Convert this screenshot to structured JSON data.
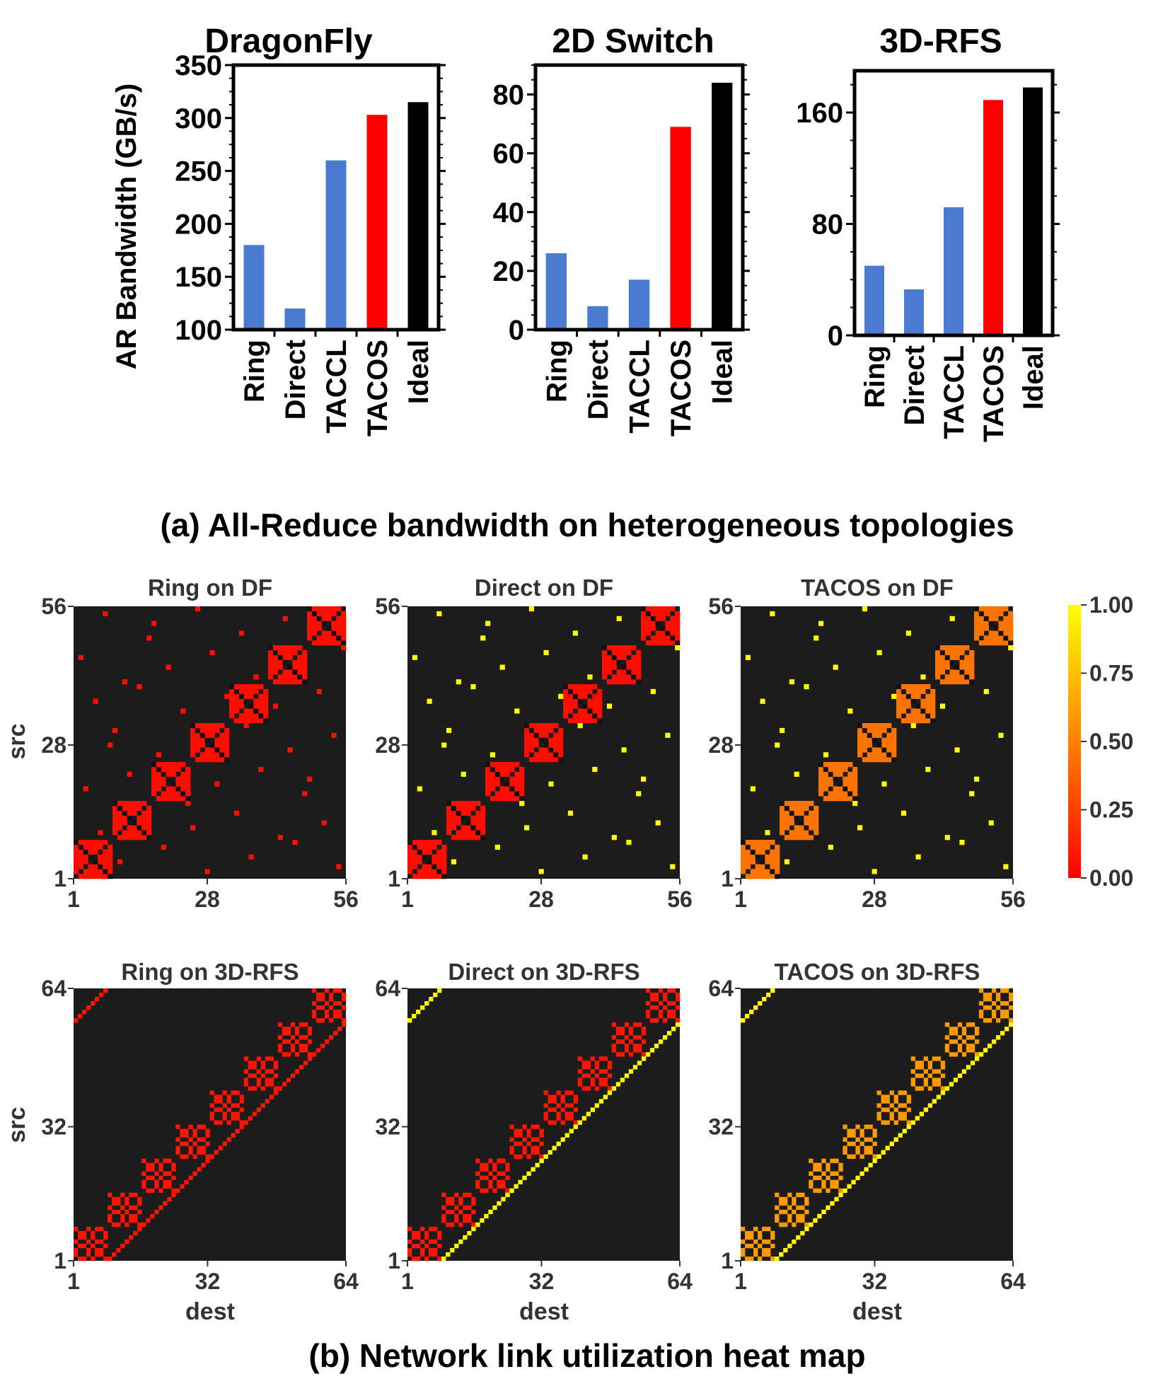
{
  "caption_a": "(a) All-Reduce bandwidth on heterogeneous topologies",
  "caption_b": "(b) Network link utilization heat map",
  "colors": {
    "baseline": "#4a7bd0",
    "tacos": "#ff0000",
    "ideal": "#000000",
    "heat_bg": "#1c1c1c"
  },
  "chart_data": [
    {
      "type": "bar",
      "title": "DragonFly",
      "ylabel": "AR Bandwidth (GB/s)",
      "categories": [
        "Ring",
        "Direct",
        "TACCL",
        "TACOS",
        "Ideal"
      ],
      "values": [
        180,
        120,
        260,
        303,
        315
      ],
      "ylim": [
        100,
        350
      ],
      "yticks": [
        "100",
        "150",
        "200",
        "250",
        "300",
        "350"
      ],
      "colors": [
        "#4a7bd0",
        "#4a7bd0",
        "#4a7bd0",
        "#ff0000",
        "#000000"
      ]
    },
    {
      "type": "bar",
      "title": "2D Switch",
      "ylabel": "",
      "categories": [
        "Ring",
        "Direct",
        "TACCL",
        "TACOS",
        "Ideal"
      ],
      "values": [
        26,
        8,
        17,
        69,
        84
      ],
      "ylim": [
        0,
        90
      ],
      "yticks": [
        "0",
        "20",
        "40",
        "60",
        "80"
      ],
      "colors": [
        "#4a7bd0",
        "#4a7bd0",
        "#4a7bd0",
        "#ff0000",
        "#000000"
      ]
    },
    {
      "type": "bar",
      "title": "3D-RFS",
      "ylabel": "",
      "categories": [
        "Ring",
        "Direct",
        "TACCL",
        "TACOS",
        "Ideal"
      ],
      "values": [
        50,
        33,
        92,
        169,
        178
      ],
      "ylim": [
        0,
        190
      ],
      "yticks": [
        "0",
        "80",
        "160"
      ],
      "colors": [
        "#4a7bd0",
        "#4a7bd0",
        "#4a7bd0",
        "#ff0000",
        "#000000"
      ]
    },
    {
      "type": "heatmap",
      "title": "Ring on DF",
      "ylabel": "src",
      "xlabel": "",
      "n": 56,
      "pattern": "df",
      "block_value": 0.05,
      "scatter_value": 0.05,
      "xticks": [
        "1",
        "28",
        "56"
      ],
      "yticks": [
        "1",
        "28",
        "56"
      ]
    },
    {
      "type": "heatmap",
      "title": "Direct on DF",
      "ylabel": "",
      "xlabel": "",
      "n": 56,
      "pattern": "df",
      "block_value": 0.05,
      "scatter_value": 1.0,
      "xticks": [
        "1",
        "28",
        "56"
      ],
      "yticks": [
        "1",
        "28",
        "56"
      ]
    },
    {
      "type": "heatmap",
      "title": "TACOS on DF",
      "ylabel": "",
      "xlabel": "",
      "n": 56,
      "pattern": "df",
      "block_value": 0.45,
      "scatter_value": 1.0,
      "xticks": [
        "1",
        "28",
        "56"
      ],
      "yticks": [
        "1",
        "28",
        "56"
      ]
    },
    {
      "type": "heatmap",
      "title": "Ring on 3D-RFS",
      "ylabel": "src",
      "xlabel": "dest",
      "n": 64,
      "pattern": "rfs",
      "block_value": 0.08,
      "diag_value": 0.08,
      "xticks": [
        "1",
        "32",
        "64"
      ],
      "yticks": [
        "1",
        "32",
        "64"
      ]
    },
    {
      "type": "heatmap",
      "title": "Direct on 3D-RFS",
      "ylabel": "",
      "xlabel": "dest",
      "n": 64,
      "pattern": "rfs",
      "block_value": 0.08,
      "diag_value": 1.0,
      "xticks": [
        "1",
        "32",
        "64"
      ],
      "yticks": [
        "1",
        "32",
        "64"
      ]
    },
    {
      "type": "heatmap",
      "title": "TACOS on 3D-RFS",
      "ylabel": "",
      "xlabel": "dest",
      "n": 64,
      "pattern": "rfs",
      "block_value": 0.6,
      "diag_value": 1.0,
      "xticks": [
        "1",
        "32",
        "64"
      ],
      "yticks": [
        "1",
        "32",
        "64"
      ]
    }
  ],
  "colorbar": {
    "ticks": [
      "0.00",
      "0.25",
      "0.50",
      "0.75",
      "1.00"
    ],
    "range": [
      0,
      1
    ]
  }
}
